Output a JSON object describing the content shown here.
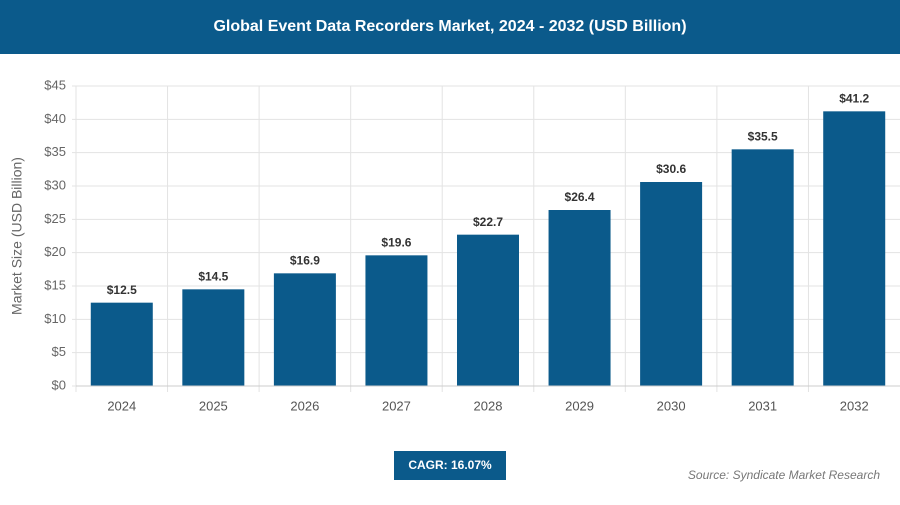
{
  "chart_data": {
    "type": "bar",
    "title": "Global Event Data Recorders Market, 2024 - 2032 (USD Billion)",
    "y_label": "Market Size (USD Billion)",
    "categories": [
      "2024",
      "2025",
      "2026",
      "2027",
      "2028",
      "2029",
      "2030",
      "2031",
      "2032"
    ],
    "values": [
      12.5,
      14.5,
      16.9,
      19.6,
      22.7,
      26.4,
      30.6,
      35.5,
      41.2
    ],
    "value_labels": [
      "$12.5",
      "$14.5",
      "$16.9",
      "$19.6",
      "$22.7",
      "$26.4",
      "$30.6",
      "$35.5",
      "$41.2"
    ],
    "color": "#0b5a8b",
    "ylim": [
      0,
      45
    ],
    "yticks": [
      {
        "value": 0,
        "label": "$0"
      },
      {
        "value": 5,
        "label": "$5"
      },
      {
        "value": 10,
        "label": "$10"
      },
      {
        "value": 15,
        "label": "$15"
      },
      {
        "value": 20,
        "label": "$20"
      },
      {
        "value": 25,
        "label": "$25"
      },
      {
        "value": 30,
        "label": "$30"
      },
      {
        "value": 35,
        "label": "$35"
      },
      {
        "value": 40,
        "label": "$40"
      },
      {
        "value": 45,
        "label": "$45"
      }
    ],
    "grid": true,
    "annotation": "CAGR: 16.07%",
    "source": "Source: Syndicate Market Research"
  }
}
